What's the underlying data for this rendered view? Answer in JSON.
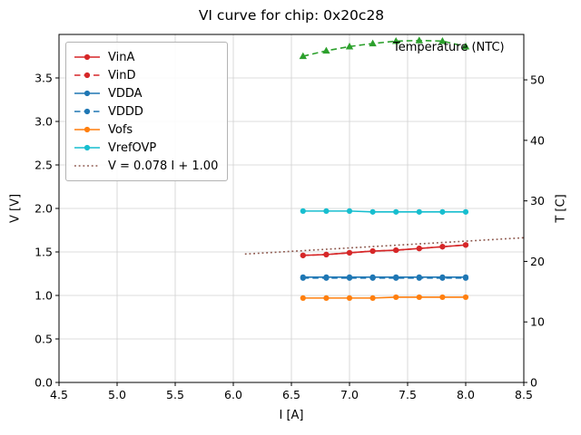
{
  "title": "VI curve for chip: 0x20c28",
  "annotation": "Temperature (NTC)",
  "legend": [
    {
      "label": "VinA",
      "color": "#d62728",
      "dash": "solid",
      "marker": true
    },
    {
      "label": "VinD",
      "color": "#d62728",
      "dash": "dashed",
      "marker": true
    },
    {
      "label": "VDDA",
      "color": "#1f77b4",
      "dash": "solid",
      "marker": true
    },
    {
      "label": "VDDD",
      "color": "#1f77b4",
      "dash": "dashed",
      "marker": true
    },
    {
      "label": "Vofs",
      "color": "#ff7f0e",
      "dash": "solid",
      "marker": true
    },
    {
      "label": "VrefOVP",
      "color": "#17becf",
      "dash": "solid",
      "marker": true
    },
    {
      "label": "V = 0.078 I + 1.00",
      "color": "#8c564b",
      "dash": "dotted",
      "marker": false
    }
  ],
  "chart_data": {
    "type": "line",
    "title": "VI curve for chip: 0x20c28",
    "xlabel": "I [A]",
    "ylabel_left": "V [V]",
    "ylabel_right": "T [C]",
    "xlim": [
      4.5,
      8.5
    ],
    "ylim_left": [
      0.0,
      4.0
    ],
    "ylim_right": [
      0,
      57.5
    ],
    "xticks": [
      4.5,
      5.0,
      5.5,
      6.0,
      6.5,
      7.0,
      7.5,
      8.0,
      8.5
    ],
    "yticks_left": [
      0.0,
      0.5,
      1.0,
      1.5,
      2.0,
      2.5,
      3.0,
      3.5
    ],
    "yticks_right": [
      0,
      10,
      20,
      30,
      40,
      50
    ],
    "grid": true,
    "legend_position": "upper left",
    "x": [
      6.6,
      6.8,
      7.0,
      7.2,
      7.4,
      7.6,
      7.8,
      8.0
    ],
    "series": [
      {
        "name": "VinA",
        "axis": "left",
        "color": "#d62728",
        "dash": "solid",
        "marker": "circle",
        "values": [
          1.46,
          1.47,
          1.49,
          1.51,
          1.52,
          1.54,
          1.56,
          1.58
        ]
      },
      {
        "name": "VinD",
        "axis": "left",
        "color": "#d62728",
        "dash": "dashed",
        "marker": "circle",
        "values": [
          1.46,
          1.47,
          1.49,
          1.51,
          1.52,
          1.54,
          1.56,
          1.58
        ]
      },
      {
        "name": "VDDA",
        "axis": "left",
        "color": "#1f77b4",
        "dash": "solid",
        "marker": "circle",
        "values": [
          1.21,
          1.21,
          1.21,
          1.21,
          1.21,
          1.21,
          1.21,
          1.21
        ]
      },
      {
        "name": "VDDD",
        "axis": "left",
        "color": "#1f77b4",
        "dash": "dashed",
        "marker": "circle",
        "values": [
          1.2,
          1.2,
          1.2,
          1.2,
          1.2,
          1.2,
          1.2,
          1.2
        ]
      },
      {
        "name": "Vofs",
        "axis": "left",
        "color": "#ff7f0e",
        "dash": "solid",
        "marker": "circle",
        "values": [
          0.97,
          0.97,
          0.97,
          0.97,
          0.98,
          0.98,
          0.98,
          0.98
        ]
      },
      {
        "name": "VrefOVP",
        "axis": "left",
        "color": "#17becf",
        "dash": "solid",
        "marker": "circle",
        "values": [
          1.97,
          1.97,
          1.97,
          1.96,
          1.96,
          1.96,
          1.96,
          1.96
        ]
      },
      {
        "name": "Temperature (NTC)",
        "axis": "right",
        "color": "#2ca02c",
        "dash": "dashed",
        "marker": "triangle",
        "values": [
          53.9,
          54.8,
          55.5,
          56.0,
          56.4,
          56.5,
          56.4,
          55.5
        ]
      }
    ],
    "fit_line": {
      "label": "V = 0.078 I + 1.00",
      "slope": 0.078,
      "intercept": 1.0,
      "x_range": [
        6.1,
        8.5
      ],
      "color": "#8c564b",
      "dash": "dotted",
      "axis": "left"
    }
  }
}
